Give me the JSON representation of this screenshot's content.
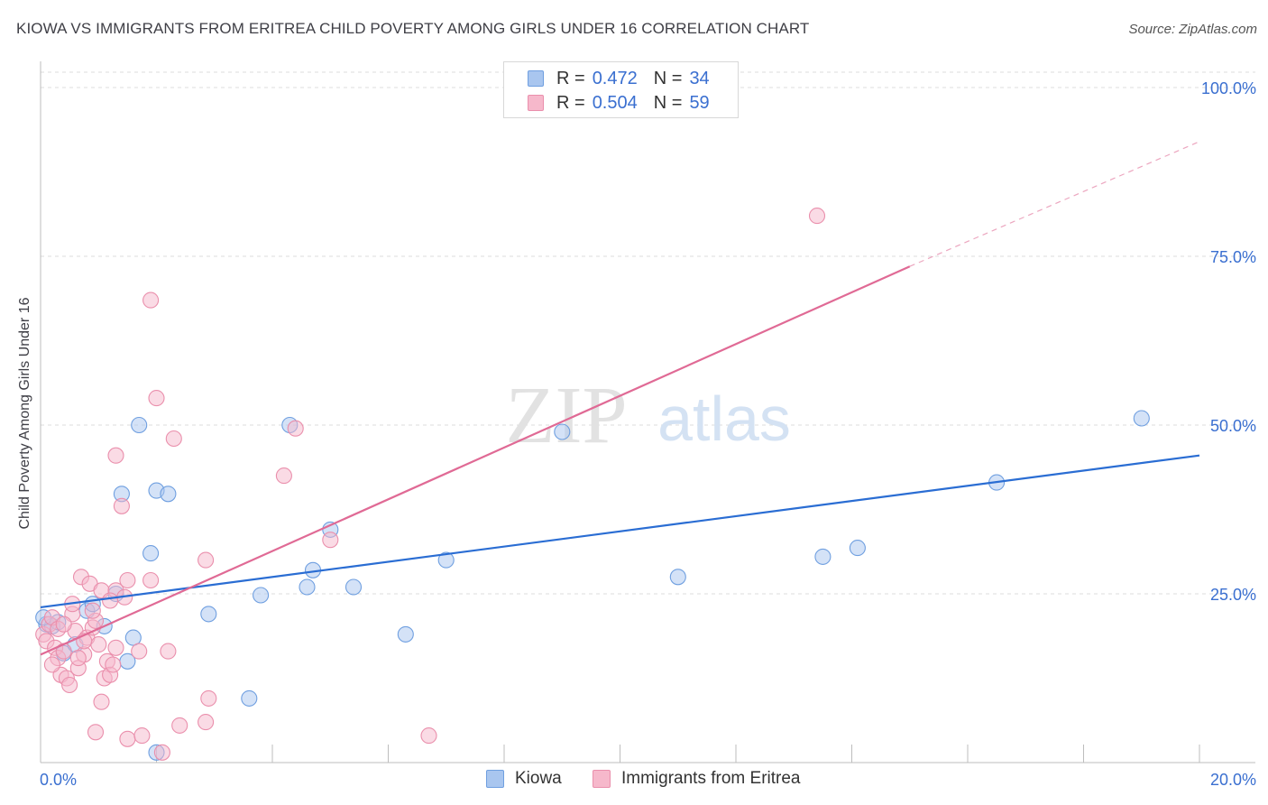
{
  "chart_data": {
    "type": "scatter",
    "title": "KIOWA VS IMMIGRANTS FROM ERITREA CHILD POVERTY AMONG GIRLS UNDER 16 CORRELATION CHART",
    "source": "Source: ZipAtlas.com",
    "watermark": {
      "zip": "ZIP",
      "atlas": "atlas"
    },
    "xlabel": "",
    "ylabel": "Child Poverty Among Girls Under 16",
    "xlim": [
      0,
      20
    ],
    "ylim": [
      0,
      100
    ],
    "x_tick_labels": [
      {
        "value": 0,
        "label": "0.0%"
      },
      {
        "value": 20,
        "label": "20.0%"
      }
    ],
    "y_tick_labels": [
      {
        "value": 25,
        "label": "25.0%"
      },
      {
        "value": 50,
        "label": "50.0%"
      },
      {
        "value": 75,
        "label": "75.0%"
      },
      {
        "value": 100,
        "label": "100.0%"
      }
    ],
    "legend_stats": [
      {
        "r_label": "R =",
        "r_value": "0.472",
        "n_label": "N =",
        "n_value": "34"
      },
      {
        "r_label": "R =",
        "r_value": "0.504",
        "n_label": "N =",
        "n_value": "59"
      }
    ],
    "series": [
      {
        "name": "Kiowa",
        "color": "#a9c6ef",
        "stroke": "#6f9fe0",
        "line_color": "#2a6dd3",
        "trend": {
          "x0": 0,
          "y0": 23.0,
          "x1": 20,
          "y1": 45.5
        },
        "points": [
          [
            0.1,
            20.5
          ],
          [
            0.2,
            20.2
          ],
          [
            0.3,
            20.8
          ],
          [
            0.4,
            16.2
          ],
          [
            0.6,
            17.5
          ],
          [
            0.8,
            22.5
          ],
          [
            0.9,
            23.5
          ],
          [
            1.1,
            20.2
          ],
          [
            1.3,
            25.0
          ],
          [
            1.4,
            39.8
          ],
          [
            1.5,
            15.0
          ],
          [
            1.6,
            18.5
          ],
          [
            1.7,
            50.0
          ],
          [
            1.9,
            31.0
          ],
          [
            2.0,
            40.3
          ],
          [
            2.2,
            39.8
          ],
          [
            2.0,
            1.5
          ],
          [
            2.9,
            22.0
          ],
          [
            3.6,
            9.5
          ],
          [
            3.8,
            24.8
          ],
          [
            4.3,
            50.0
          ],
          [
            4.6,
            26.0
          ],
          [
            4.7,
            28.5
          ],
          [
            5.0,
            34.5
          ],
          [
            5.4,
            26.0
          ],
          [
            6.3,
            19.0
          ],
          [
            7.0,
            30.0
          ],
          [
            9.0,
            49.0
          ],
          [
            11.0,
            27.5
          ],
          [
            13.5,
            30.5
          ],
          [
            14.1,
            31.8
          ],
          [
            16.5,
            41.5
          ],
          [
            19.0,
            51.0
          ],
          [
            0.05,
            21.5
          ]
        ]
      },
      {
        "name": "Immigrants from Eritrea",
        "color": "#f6b8cb",
        "stroke": "#ea8fac",
        "line_color": "#e06a95",
        "trend": {
          "x0": 0,
          "y0": 16.0,
          "x1": 15.0,
          "y1": 73.5
        },
        "trend_dashed": {
          "x0": 15.0,
          "y0": 73.5,
          "x1": 20,
          "y1": 92.0
        },
        "points": [
          [
            0.05,
            19.0
          ],
          [
            0.1,
            18.0
          ],
          [
            0.15,
            20.5
          ],
          [
            0.2,
            21.5
          ],
          [
            0.25,
            17.0
          ],
          [
            0.3,
            15.5
          ],
          [
            0.35,
            13.0
          ],
          [
            0.4,
            16.5
          ],
          [
            0.45,
            12.5
          ],
          [
            0.5,
            11.5
          ],
          [
            0.55,
            22.0
          ],
          [
            0.6,
            19.5
          ],
          [
            0.65,
            14.0
          ],
          [
            0.7,
            27.5
          ],
          [
            0.75,
            16.0
          ],
          [
            0.8,
            18.5
          ],
          [
            0.85,
            26.5
          ],
          [
            0.9,
            20.0
          ],
          [
            0.95,
            21.0
          ],
          [
            1.0,
            17.5
          ],
          [
            1.05,
            25.5
          ],
          [
            1.1,
            12.5
          ],
          [
            1.15,
            15.0
          ],
          [
            1.2,
            13.0
          ],
          [
            1.25,
            14.5
          ],
          [
            1.3,
            17.0
          ],
          [
            0.95,
            4.5
          ],
          [
            1.05,
            9.0
          ],
          [
            1.3,
            25.5
          ],
          [
            1.3,
            45.5
          ],
          [
            1.4,
            38.0
          ],
          [
            1.45,
            24.5
          ],
          [
            1.5,
            27.0
          ],
          [
            1.5,
            3.5
          ],
          [
            1.7,
            16.5
          ],
          [
            1.75,
            4.0
          ],
          [
            1.9,
            68.5
          ],
          [
            1.9,
            27.0
          ],
          [
            2.0,
            54.0
          ],
          [
            2.1,
            1.5
          ],
          [
            2.2,
            16.5
          ],
          [
            2.3,
            48.0
          ],
          [
            2.4,
            5.5
          ],
          [
            2.85,
            30.0
          ],
          [
            2.85,
            6.0
          ],
          [
            2.9,
            9.5
          ],
          [
            4.2,
            42.5
          ],
          [
            4.4,
            49.5
          ],
          [
            5.0,
            33.0
          ],
          [
            6.7,
            4.0
          ],
          [
            13.4,
            81.0
          ],
          [
            0.3,
            19.8
          ],
          [
            0.2,
            14.5
          ],
          [
            0.55,
            23.5
          ],
          [
            0.75,
            18.0
          ],
          [
            0.9,
            22.5
          ],
          [
            1.2,
            24.0
          ],
          [
            0.4,
            20.5
          ],
          [
            0.65,
            15.5
          ]
        ]
      }
    ]
  }
}
